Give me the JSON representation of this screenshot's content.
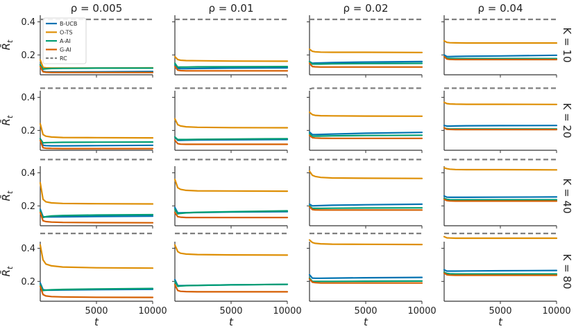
{
  "chart_data": {
    "type": "line",
    "layout": "4x4 small multiples",
    "column_titles": [
      "ρ = 0.005",
      "ρ = 0.01",
      "ρ = 0.02",
      "ρ = 0.04"
    ],
    "row_titles": [
      "K = 10",
      "K = 20",
      "K = 40",
      "K = 80"
    ],
    "ylabel_main": "R̄",
    "ylabel_sub": "t",
    "xlabel": "t",
    "xlim": [
      0,
      10000
    ],
    "ylim": [
      0.08,
      0.44
    ],
    "xticks": [
      5000,
      10000
    ],
    "xtick_labels": [
      "5000",
      "10000"
    ],
    "yticks": [
      0.2,
      0.4
    ],
    "ytick_labels": [
      "0.2",
      "0.4"
    ],
    "legend_position": "top-left of first panel",
    "series_styles": [
      {
        "name": "B-UCB",
        "color": "#0173b2",
        "dash": "solid"
      },
      {
        "name": "O-TS",
        "color": "#de8f05",
        "dash": "solid"
      },
      {
        "name": "A-AI",
        "color": "#029e73",
        "dash": "solid"
      },
      {
        "name": "G-AI",
        "color": "#d55e00",
        "dash": "solid"
      },
      {
        "name": "RC",
        "color": "#7f7f7f",
        "dash": "dashed"
      }
    ],
    "x": [
      0,
      250,
      500,
      1000,
      2000,
      5000,
      10000
    ],
    "panels": [
      [
        {
          "B-UCB": [
            0.14,
            0.1,
            0.098,
            0.097,
            0.097,
            0.098,
            0.1
          ],
          "O-TS": [
            0.17,
            0.125,
            0.122,
            0.121,
            0.121,
            0.121,
            0.122
          ],
          "A-AI": [
            0.14,
            0.114,
            0.116,
            0.118,
            0.119,
            0.12,
            0.12
          ],
          "G-AI": [
            0.13,
            0.098,
            0.095,
            0.094,
            0.094,
            0.094,
            0.094
          ],
          "RC": [
            0.415,
            0.415,
            0.415,
            0.415,
            0.415,
            0.415,
            0.415
          ]
        },
        {
          "B-UCB": [
            0.14,
            0.118,
            0.117,
            0.117,
            0.118,
            0.12,
            0.122
          ],
          "O-TS": [
            0.19,
            0.172,
            0.168,
            0.166,
            0.165,
            0.163,
            0.162
          ],
          "A-AI": [
            0.15,
            0.126,
            0.127,
            0.127,
            0.128,
            0.129,
            0.13
          ],
          "G-AI": [
            0.13,
            0.108,
            0.105,
            0.104,
            0.104,
            0.104,
            0.104
          ],
          "RC": [
            0.415,
            0.415,
            0.415,
            0.415,
            0.415,
            0.415,
            0.415
          ]
        },
        {
          "B-UCB": [
            0.16,
            0.15,
            0.151,
            0.152,
            0.154,
            0.157,
            0.16
          ],
          "O-TS": [
            0.235,
            0.222,
            0.219,
            0.217,
            0.216,
            0.216,
            0.215
          ],
          "A-AI": [
            0.16,
            0.145,
            0.145,
            0.145,
            0.146,
            0.148,
            0.149
          ],
          "G-AI": [
            0.15,
            0.13,
            0.128,
            0.127,
            0.127,
            0.127,
            0.127
          ],
          "RC": [
            0.415,
            0.415,
            0.415,
            0.415,
            0.415,
            0.415,
            0.415
          ]
        },
        {
          "B-UCB": [
            0.2,
            0.19,
            0.19,
            0.191,
            0.192,
            0.194,
            0.198
          ],
          "O-TS": [
            0.285,
            0.276,
            0.274,
            0.273,
            0.272,
            0.272,
            0.272
          ],
          "A-AI": [
            0.19,
            0.18,
            0.179,
            0.178,
            0.178,
            0.178,
            0.178
          ],
          "G-AI": [
            0.19,
            0.175,
            0.173,
            0.172,
            0.172,
            0.172,
            0.172
          ],
          "RC": [
            0.415,
            0.415,
            0.415,
            0.415,
            0.415,
            0.415,
            0.415
          ]
        }
      ],
      [
        {
          "B-UCB": [
            0.15,
            0.11,
            0.108,
            0.107,
            0.107,
            0.108,
            0.11
          ],
          "O-TS": [
            0.24,
            0.175,
            0.165,
            0.16,
            0.157,
            0.156,
            0.155
          ],
          "A-AI": [
            0.15,
            0.125,
            0.126,
            0.127,
            0.128,
            0.129,
            0.13
          ],
          "G-AI": [
            0.14,
            0.095,
            0.092,
            0.091,
            0.09,
            0.09,
            0.09
          ],
          "RC": [
            0.455,
            0.455,
            0.455,
            0.455,
            0.455,
            0.455,
            0.455
          ]
        },
        {
          "B-UCB": [
            0.16,
            0.14,
            0.14,
            0.141,
            0.142,
            0.143,
            0.145
          ],
          "O-TS": [
            0.27,
            0.235,
            0.227,
            0.222,
            0.219,
            0.217,
            0.216
          ],
          "A-AI": [
            0.16,
            0.145,
            0.145,
            0.145,
            0.146,
            0.148,
            0.15
          ],
          "G-AI": [
            0.14,
            0.12,
            0.117,
            0.116,
            0.116,
            0.116,
            0.116
          ],
          "RC": [
            0.455,
            0.455,
            0.455,
            0.455,
            0.455,
            0.455,
            0.455
          ]
        },
        {
          "B-UCB": [
            0.19,
            0.175,
            0.175,
            0.176,
            0.178,
            0.183,
            0.188
          ],
          "O-TS": [
            0.31,
            0.295,
            0.291,
            0.289,
            0.288,
            0.287,
            0.286
          ],
          "A-AI": [
            0.18,
            0.165,
            0.165,
            0.166,
            0.167,
            0.169,
            0.171
          ],
          "G-AI": [
            0.17,
            0.156,
            0.154,
            0.153,
            0.152,
            0.152,
            0.152
          ],
          "RC": [
            0.45,
            0.455,
            0.455,
            0.455,
            0.455,
            0.455,
            0.455
          ]
        },
        {
          "B-UCB": [
            0.23,
            0.226,
            0.226,
            0.227,
            0.228,
            0.229,
            0.23
          ],
          "O-TS": [
            0.37,
            0.362,
            0.36,
            0.359,
            0.358,
            0.358,
            0.357
          ],
          "A-AI": [
            0.215,
            0.21,
            0.209,
            0.209,
            0.209,
            0.209,
            0.209
          ],
          "G-AI": [
            0.215,
            0.207,
            0.206,
            0.205,
            0.205,
            0.205,
            0.205
          ],
          "RC": [
            0.455,
            0.455,
            0.455,
            0.455,
            0.455,
            0.455,
            0.455
          ]
        }
      ],
      [
        {
          "B-UCB": [
            0.18,
            0.135,
            0.133,
            0.133,
            0.134,
            0.136,
            0.138
          ],
          "O-TS": [
            0.34,
            0.24,
            0.225,
            0.218,
            0.215,
            0.213,
            0.212
          ],
          "A-AI": [
            0.17,
            0.13,
            0.135,
            0.139,
            0.142,
            0.145,
            0.147
          ],
          "G-AI": [
            0.16,
            0.11,
            0.105,
            0.102,
            0.1,
            0.099,
            0.098
          ],
          "RC": [
            0.48,
            0.48,
            0.48,
            0.48,
            0.48,
            0.48,
            0.48
          ]
        },
        {
          "B-UCB": [
            0.19,
            0.158,
            0.158,
            0.159,
            0.16,
            0.163,
            0.165
          ],
          "O-TS": [
            0.36,
            0.31,
            0.3,
            0.294,
            0.291,
            0.29,
            0.289
          ],
          "A-AI": [
            0.18,
            0.152,
            0.155,
            0.158,
            0.161,
            0.165,
            0.17
          ],
          "G-AI": [
            0.16,
            0.135,
            0.132,
            0.13,
            0.13,
            0.13,
            0.13
          ],
          "RC": [
            0.48,
            0.48,
            0.48,
            0.48,
            0.48,
            0.48,
            0.48
          ]
        },
        {
          "B-UCB": [
            0.21,
            0.2,
            0.201,
            0.202,
            0.204,
            0.207,
            0.21
          ],
          "O-TS": [
            0.41,
            0.385,
            0.378,
            0.372,
            0.369,
            0.367,
            0.366
          ],
          "A-AI": [
            0.2,
            0.185,
            0.185,
            0.185,
            0.186,
            0.187,
            0.188
          ],
          "G-AI": [
            0.195,
            0.178,
            0.176,
            0.175,
            0.175,
            0.175,
            0.175
          ],
          "RC": [
            0.48,
            0.48,
            0.48,
            0.48,
            0.48,
            0.48,
            0.48
          ]
        },
        {
          "B-UCB": [
            0.26,
            0.253,
            0.252,
            0.252,
            0.252,
            0.253,
            0.254
          ],
          "O-TS": [
            0.43,
            0.425,
            0.422,
            0.42,
            0.419,
            0.419,
            0.418
          ],
          "A-AI": [
            0.245,
            0.24,
            0.238,
            0.237,
            0.237,
            0.237,
            0.237
          ],
          "G-AI": [
            0.24,
            0.232,
            0.23,
            0.229,
            0.229,
            0.229,
            0.229
          ],
          "RC": [
            0.48,
            0.48,
            0.48,
            0.48,
            0.48,
            0.48,
            0.48
          ]
        }
      ],
      [
        {
          "B-UCB": [
            0.19,
            0.15,
            0.147,
            0.147,
            0.148,
            0.15,
            0.152
          ],
          "O-TS": [
            0.42,
            0.33,
            0.305,
            0.294,
            0.287,
            0.282,
            0.28
          ],
          "A-AI": [
            0.18,
            0.145,
            0.147,
            0.149,
            0.151,
            0.154,
            0.157
          ],
          "G-AI": [
            0.17,
            0.12,
            0.112,
            0.108,
            0.106,
            0.104,
            0.103
          ],
          "RC": [
            0.49,
            0.49,
            0.49,
            0.49,
            0.49,
            0.49,
            0.49
          ]
        },
        {
          "B-UCB": [
            0.21,
            0.175,
            0.174,
            0.175,
            0.176,
            0.179,
            0.182
          ],
          "O-TS": [
            0.42,
            0.38,
            0.37,
            0.365,
            0.362,
            0.36,
            0.359
          ],
          "A-AI": [
            0.2,
            0.17,
            0.172,
            0.174,
            0.176,
            0.179,
            0.182
          ],
          "G-AI": [
            0.18,
            0.145,
            0.14,
            0.138,
            0.137,
            0.137,
            0.137
          ],
          "RC": [
            0.49,
            0.49,
            0.49,
            0.49,
            0.49,
            0.49,
            0.49
          ]
        },
        {
          "B-UCB": [
            0.24,
            0.22,
            0.219,
            0.219,
            0.22,
            0.222,
            0.224
          ],
          "O-TS": [
            0.45,
            0.435,
            0.43,
            0.427,
            0.425,
            0.424,
            0.423
          ],
          "A-AI": [
            0.22,
            0.2,
            0.2,
            0.2,
            0.2,
            0.201,
            0.202
          ],
          "G-AI": [
            0.215,
            0.195,
            0.192,
            0.19,
            0.19,
            0.19,
            0.19
          ],
          "RC": [
            0.49,
            0.49,
            0.49,
            0.49,
            0.49,
            0.49,
            0.49
          ]
        },
        {
          "B-UCB": [
            0.27,
            0.262,
            0.262,
            0.262,
            0.263,
            0.264,
            0.266
          ],
          "O-TS": [
            0.47,
            0.463,
            0.462,
            0.461,
            0.461,
            0.461,
            0.461
          ],
          "A-AI": [
            0.255,
            0.248,
            0.246,
            0.245,
            0.245,
            0.245,
            0.245
          ],
          "G-AI": [
            0.25,
            0.24,
            0.238,
            0.237,
            0.237,
            0.237,
            0.237
          ],
          "RC": [
            0.49,
            0.49,
            0.49,
            0.49,
            0.49,
            0.49,
            0.49
          ]
        }
      ]
    ]
  }
}
